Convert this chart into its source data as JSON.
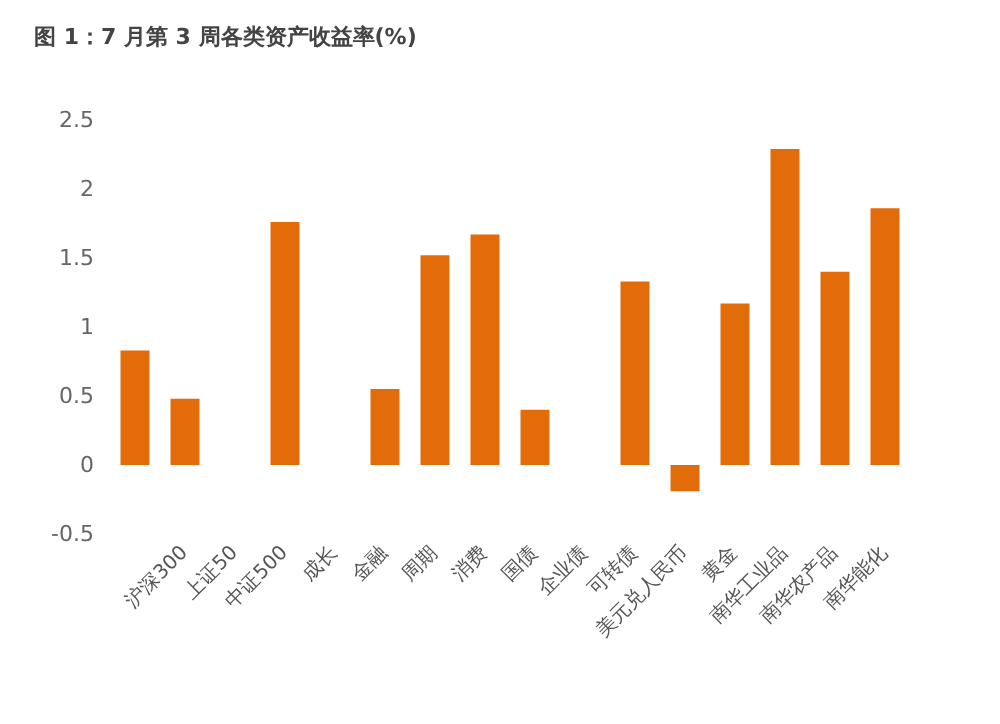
{
  "chart_data": {
    "type": "bar",
    "title": "图 1：7 月第 3 周各类资产收益率(%)",
    "categories": [
      null,
      "沪深300",
      "上证50",
      "中证500",
      "成长",
      "金融",
      "周期",
      "消费",
      "国债",
      "企业债",
      "可转债",
      "美元兑人民币",
      "黄金",
      "南华工业品",
      "南华农产品",
      "南华能化"
    ],
    "values": [
      0.83,
      0.48,
      null,
      1.76,
      null,
      0.55,
      1.52,
      1.67,
      0.4,
      null,
      1.33,
      -0.19,
      1.17,
      2.29,
      1.4,
      1.86
    ],
    "color": "#e36c0a",
    "ylim": [
      -0.5,
      2.5
    ],
    "yticks": [
      -0.5,
      0,
      0.5,
      1,
      1.5,
      2,
      2.5
    ],
    "grid": false
  }
}
